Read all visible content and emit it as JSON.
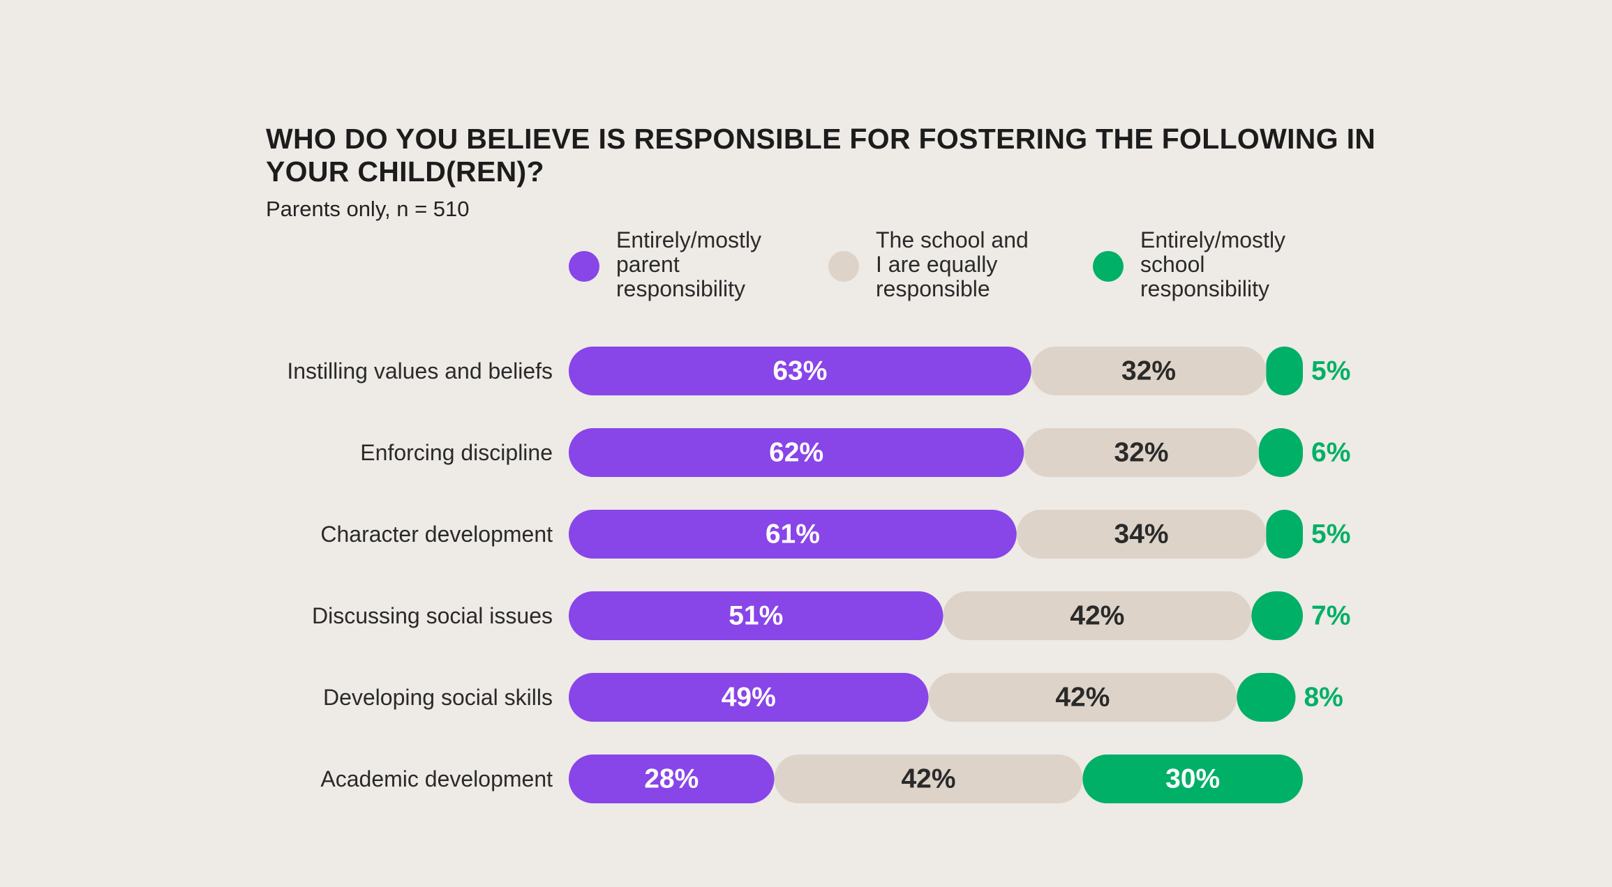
{
  "colors": {
    "background": "#eeeae6",
    "parent": "#8845e8",
    "equal": "#ddd3c8",
    "school": "#00b067",
    "text_on_parent": "#ffffff",
    "text_on_equal": "#2a2a2a",
    "text_on_school": "#ffffff",
    "outside_label": "#00b067"
  },
  "chart_data": {
    "type": "bar",
    "orientation": "horizontal",
    "stacked": true,
    "title": "WHO DO YOU BELIEVE IS RESPONSIBLE FOR FOSTERING THE FOLLOWING IN YOUR CHILD(REN)?",
    "subtitle": "Parents only, n = 510",
    "legend_position": "top",
    "categories": [
      "Instilling values and beliefs",
      "Enforcing discipline",
      "Character development",
      "Discussing social issues",
      "Developing social skills",
      "Academic development"
    ],
    "series": [
      {
        "name": "Entirely/mostly\nparent\nresponsibility",
        "values": [
          63,
          62,
          61,
          51,
          49,
          28
        ]
      },
      {
        "name": "The school and\nI are equally\nresponsible",
        "values": [
          32,
          32,
          34,
          42,
          42,
          42
        ]
      },
      {
        "name": "Entirely/mostly\nschool\nresponsibility",
        "values": [
          5,
          6,
          5,
          7,
          8,
          30
        ]
      }
    ],
    "value_suffix": "%",
    "xlim": [
      0,
      100
    ]
  }
}
